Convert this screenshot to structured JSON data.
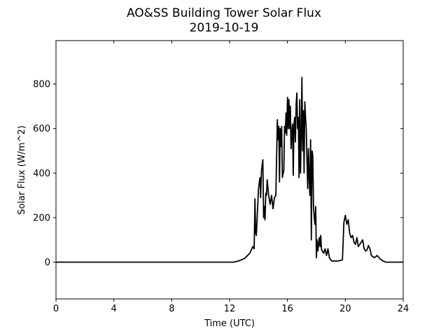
{
  "chart_data": {
    "type": "line",
    "title": "AO&SS Building Tower Solar Flux",
    "subtitle": "2019-10-19",
    "xlabel": "Time (UTC)",
    "ylabel": "Solar Flux (W/m^2)",
    "xlim": [
      0,
      24
    ],
    "ylim": [
      -165,
      995
    ],
    "xticks": [
      0,
      4,
      8,
      12,
      16,
      20,
      24
    ],
    "yticks": [
      0,
      200,
      400,
      600,
      800
    ],
    "grid": false,
    "legend": "none",
    "series": [
      {
        "color": "#000000",
        "x": [
          0,
          11.0,
          12.3,
          12.6,
          13.0,
          13.4,
          13.6,
          13.7,
          13.75,
          13.8,
          13.85,
          14.0,
          14.1,
          14.15,
          14.2,
          14.3,
          14.35,
          14.4,
          14.45,
          14.5,
          14.55,
          14.6,
          14.7,
          14.8,
          14.9,
          15.0,
          15.1,
          15.2,
          15.3,
          15.35,
          15.4,
          15.45,
          15.5,
          15.55,
          15.6,
          15.65,
          15.7,
          15.75,
          15.8,
          15.85,
          15.9,
          15.95,
          16.0,
          16.05,
          16.1,
          16.15,
          16.2,
          16.25,
          16.3,
          16.35,
          16.4,
          16.45,
          16.5,
          16.55,
          16.6,
          16.65,
          16.7,
          16.75,
          16.8,
          16.85,
          16.9,
          16.95,
          17.0,
          17.05,
          17.1,
          17.15,
          17.2,
          17.25,
          17.3,
          17.35,
          17.4,
          17.45,
          17.5,
          17.55,
          17.6,
          17.65,
          17.7,
          17.75,
          17.8,
          17.85,
          17.9,
          17.95,
          18.0,
          18.05,
          18.1,
          18.15,
          18.2,
          18.25,
          18.3,
          18.35,
          18.4,
          18.5,
          18.6,
          18.7,
          18.8,
          18.9,
          19.0,
          19.05,
          19.1,
          19.5,
          19.8,
          19.9,
          20.0,
          20.1,
          20.2,
          20.3,
          20.4,
          20.5,
          20.6,
          20.7,
          20.8,
          20.9,
          21.0,
          21.1,
          21.2,
          21.3,
          21.4,
          21.5,
          21.6,
          21.7,
          21.8,
          21.9,
          22.0,
          22.1,
          22.2,
          22.4,
          22.6,
          22.8,
          23.0,
          23.2,
          23.5,
          24.0
        ],
        "y": [
          0,
          0,
          0,
          5,
          15,
          40,
          70,
          60,
          285,
          130,
          120,
          330,
          380,
          290,
          410,
          460,
          200,
          250,
          190,
          310,
          300,
          370,
          300,
          260,
          300,
          240,
          290,
          300,
          640,
          550,
          610,
          360,
          600,
          520,
          610,
          380,
          400,
          410,
          610,
          580,
          670,
          570,
          740,
          600,
          730,
          600,
          700,
          510,
          580,
          620,
          390,
          620,
          650,
          540,
          710,
          760,
          600,
          650,
          380,
          730,
          400,
          560,
          830,
          500,
          680,
          400,
          720,
          650,
          600,
          450,
          330,
          510,
          380,
          300,
          550,
          100,
          500,
          480,
          250,
          200,
          170,
          250,
          20,
          100,
          50,
          80,
          110,
          70,
          120,
          60,
          50,
          40,
          60,
          30,
          60,
          20,
          10,
          5,
          5,
          5,
          10,
          180,
          210,
          170,
          190,
          130,
          110,
          120,
          90,
          80,
          110,
          70,
          80,
          90,
          100,
          60,
          50,
          55,
          75,
          60,
          30,
          25,
          20,
          25,
          30,
          15,
          5,
          0,
          0,
          0,
          0,
          0
        ]
      }
    ]
  }
}
